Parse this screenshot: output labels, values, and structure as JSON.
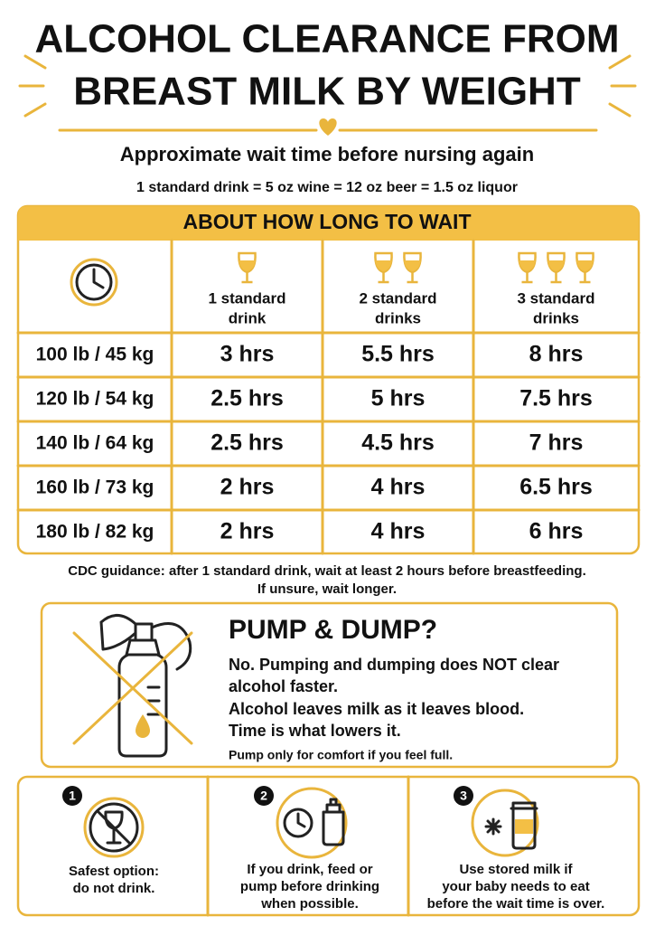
{
  "header": {
    "title_lines": [
      "ALCOHOL CLEARANCE FROM",
      "BREAST MILK BY WEIGHT"
    ],
    "subtitle": "Approximate wait time before nursing again",
    "equivalence": "1 standard drink = 5 oz wine = 12 oz beer = 1.5 oz liquor"
  },
  "table": {
    "title": "ABOUT HOW LONG TO WAIT",
    "columns": [
      [
        "1 standard",
        "drink"
      ],
      [
        "2 standard",
        "drinks"
      ],
      [
        "3 standard",
        "drinks"
      ]
    ],
    "rows": [
      [
        "100 lb / 45 kg",
        "3 hrs",
        "5.5 hrs",
        "8 hrs"
      ],
      [
        "120 lb / 54 kg",
        "2.5 hrs",
        "5 hrs",
        "7.5 hrs"
      ],
      [
        "140 lb / 64 kg",
        "2.5 hrs",
        "4.5 hrs",
        "7 hrs"
      ],
      [
        "160 lb / 73 kg",
        "2 hrs",
        "4 hrs",
        "6.5 hrs"
      ],
      [
        "180 lb / 82 kg",
        "2 hrs",
        "4 hrs",
        "6 hrs"
      ]
    ]
  },
  "note_lines": [
    "CDC guidance: after 1 standard drink, wait at least 2 hours before breastfeeding.",
    "If unsure, wait longer."
  ],
  "pump": {
    "title": "PUMP & DUMP?",
    "lines": [
      "No. Pumping and dumping does NOT clear",
      "alcohol faster.",
      "Alcohol leaves milk as it leaves blood.",
      "Time is what lowers it."
    ],
    "small": "Pump only for comfort if you feel full."
  },
  "tips": [
    {
      "number": "1",
      "lines": [
        "Safest option:",
        "do not drink."
      ]
    },
    {
      "number": "2",
      "lines": [
        "If you drink, feed or",
        "pump before drinking",
        "when possible."
      ]
    },
    {
      "number": "3",
      "lines": [
        "Use stored milk if",
        "your baby needs to eat",
        "before the wait time is over."
      ]
    }
  ]
}
